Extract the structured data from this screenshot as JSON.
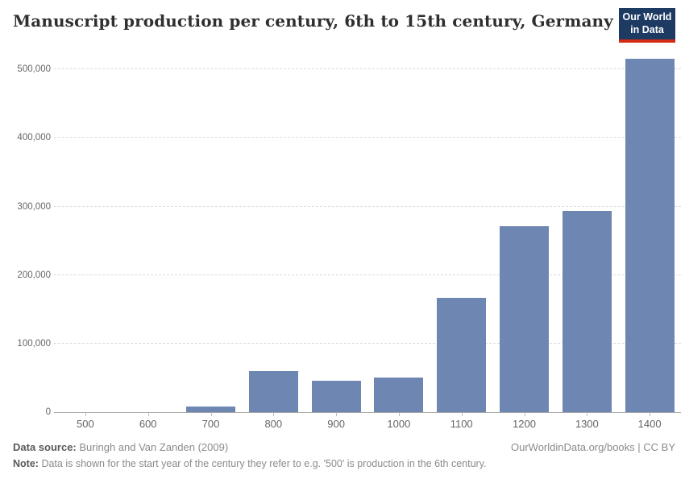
{
  "header": {
    "title": "Manuscript production per century, 6th to 15th century, Germany",
    "logo": {
      "line1": "Our World",
      "line2": "in Data",
      "bg_color": "#1d3a63",
      "accent_color": "#d42b13"
    }
  },
  "chart_data": {
    "type": "bar",
    "title": "Manuscript production per century, 6th to 15th century, Germany",
    "xlabel": "",
    "ylabel": "",
    "categories": [
      "500",
      "600",
      "700",
      "800",
      "900",
      "1000",
      "1100",
      "1200",
      "1300",
      "1400"
    ],
    "values": [
      0,
      0,
      8000,
      60000,
      46000,
      50000,
      167000,
      271000,
      294000,
      515000
    ],
    "ylim": [
      0,
      526000
    ],
    "yticks": [
      0,
      100000,
      200000,
      300000,
      400000,
      500000
    ],
    "ytick_labels": [
      "0",
      "100,000",
      "200,000",
      "300,000",
      "400,000",
      "500,000"
    ],
    "grid": "horizontal-dashed",
    "legend": "none",
    "bar_color": "#6e87b2",
    "axis_color": "#a8a8a8",
    "gridline_color": "#dcdcdc",
    "tick_label_color": "#666666"
  },
  "footer": {
    "source_label": "Data source:",
    "source_text": "Buringh and Van Zanden (2009)",
    "credit": "OurWorldinData.org/books | CC BY",
    "note_label": "Note:",
    "note_text": "Data is shown for the start year of the century they refer to e.g. '500' is production in the 6th century."
  }
}
